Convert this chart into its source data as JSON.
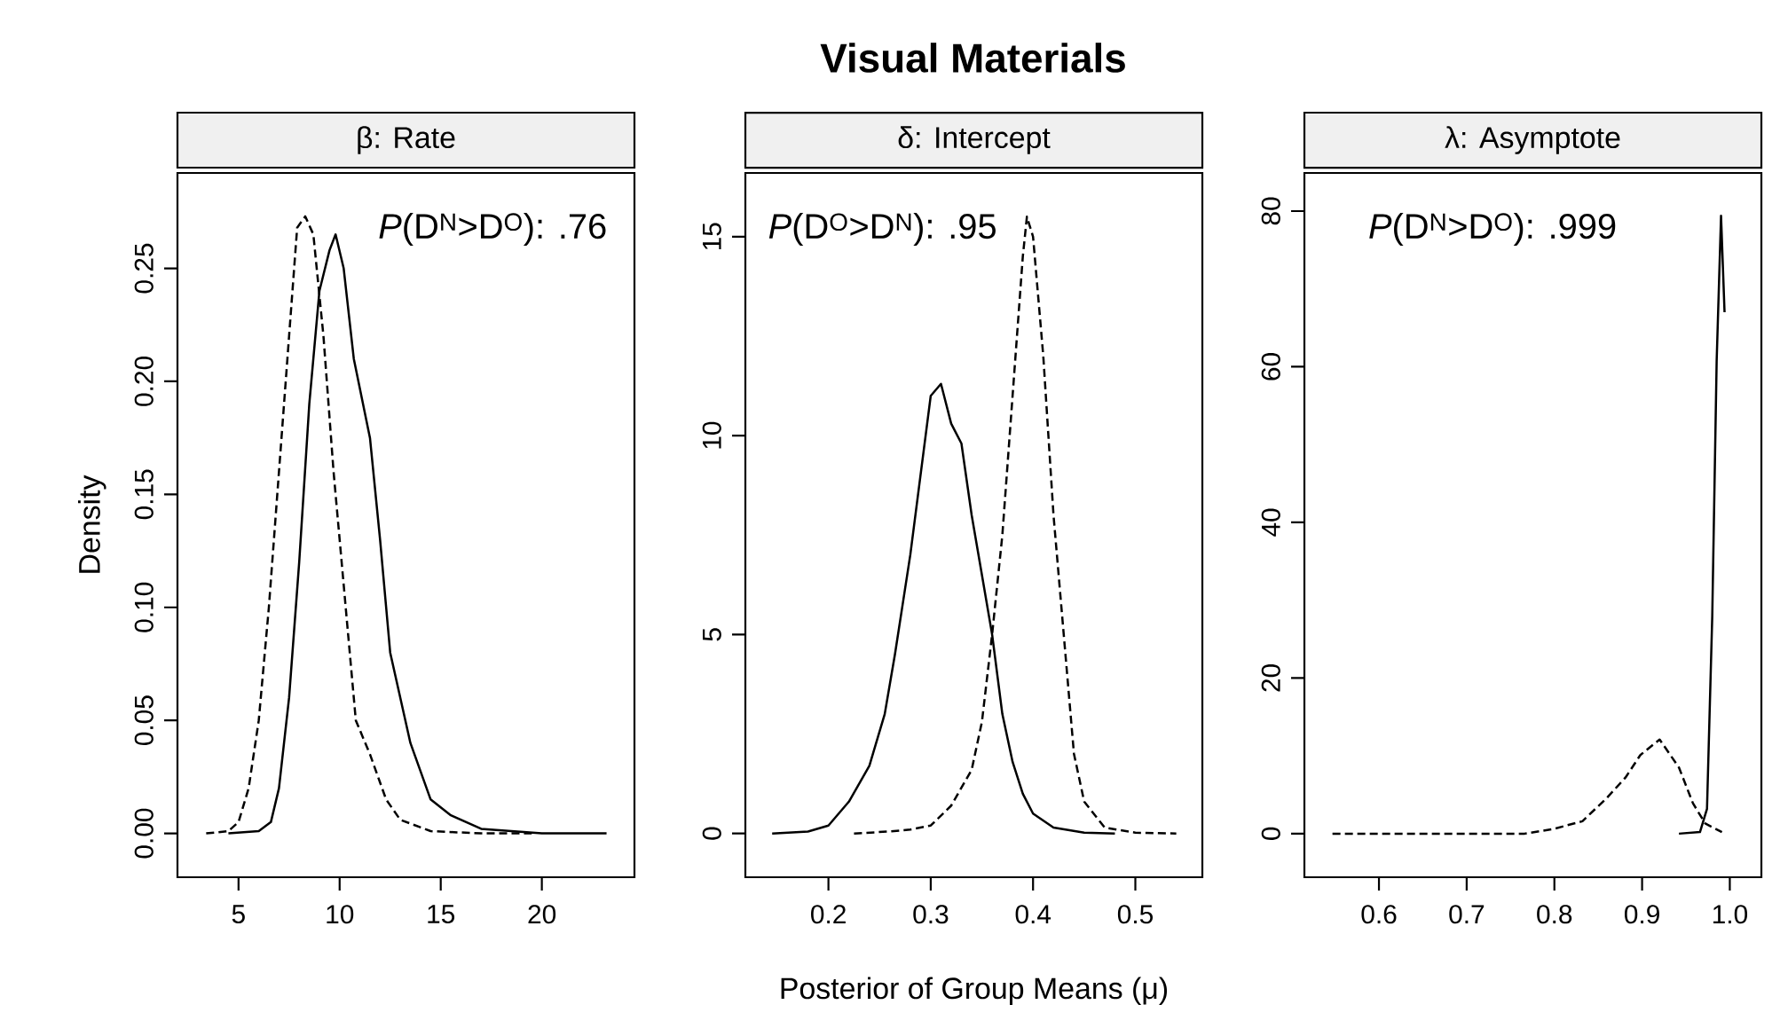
{
  "chart_data": [
    {
      "type": "line",
      "title": "β: Rate",
      "ylabel": "Density",
      "xlim": [
        1.98,
        24.58
      ],
      "ylim": [
        -0.0194,
        0.2922
      ],
      "xticks": [
        5,
        10,
        15,
        20
      ],
      "yticks": [
        {
          "value": 0,
          "label": "0.00"
        },
        {
          "value": 0.05,
          "label": "0.05"
        },
        {
          "value": 0.1,
          "label": "0.10"
        },
        {
          "value": 0.15,
          "label": "0.15"
        },
        {
          "value": 0.2,
          "label": "0.20"
        },
        {
          "value": 0.25,
          "label": "0.25"
        }
      ],
      "annotations": [
        "*P*(D$^{N}$>D$^{O}$): .76"
      ],
      "series": [
        {
          "color": "#000000",
          "line_style": "solid",
          "x": [
            4.5,
            6,
            6.6,
            7,
            7.5,
            8,
            8.5,
            9,
            9.5,
            9.8,
            10.2,
            10.7,
            11.5,
            12,
            12.5,
            13.5,
            14.5,
            15.5,
            17,
            20,
            23.2
          ],
          "values": [
            0,
            0.001,
            0.005,
            0.02,
            0.06,
            0.12,
            0.19,
            0.24,
            0.258,
            0.265,
            0.25,
            0.21,
            0.175,
            0.13,
            0.08,
            0.04,
            0.015,
            0.008,
            0.002,
            0,
            0
          ]
        },
        {
          "color": "#000000",
          "line_style": "dashed",
          "x": [
            3.4,
            4.5,
            5,
            5.5,
            6,
            6.5,
            7,
            7.5,
            7.9,
            8.3,
            8.7,
            9.2,
            9.7,
            10.3,
            10.8,
            11.5,
            12.3,
            13,
            14.5,
            17,
            19.5
          ],
          "values": [
            0,
            0.001,
            0.005,
            0.02,
            0.05,
            0.1,
            0.16,
            0.22,
            0.268,
            0.273,
            0.265,
            0.22,
            0.16,
            0.1,
            0.05,
            0.035,
            0.015,
            0.006,
            0.001,
            0,
            0
          ]
        }
      ]
    },
    {
      "type": "line",
      "title": "δ: Intercept",
      "xlabel": "Posterior of Group Means (μ)",
      "xlim": [
        0.1188,
        0.5655
      ],
      "ylim": [
        -1.1,
        16.6
      ],
      "xticks": [
        0.2,
        0.3,
        0.4,
        0.5
      ],
      "yticks": [
        0,
        5,
        10,
        15
      ],
      "annotations": [
        "**Visual Materials**",
        "*P*(D$^{O}$>D$^{N}$): .95"
      ],
      "series": [
        {
          "color": "#000000",
          "line_style": "solid",
          "x": [
            0.145,
            0.18,
            0.2,
            0.22,
            0.24,
            0.255,
            0.265,
            0.28,
            0.29,
            0.3,
            0.31,
            0.32,
            0.33,
            0.34,
            0.35,
            0.36,
            0.37,
            0.38,
            0.39,
            0.4,
            0.42,
            0.45,
            0.48
          ],
          "values": [
            0,
            0.05,
            0.2,
            0.8,
            1.7,
            3,
            4.5,
            7,
            9,
            11,
            11.3,
            10.3,
            9.8,
            8,
            6.5,
            5,
            3,
            1.8,
            1,
            0.5,
            0.15,
            0.02,
            0
          ]
        },
        {
          "color": "#000000",
          "line_style": "dashed",
          "x": [
            0.225,
            0.26,
            0.28,
            0.3,
            0.32,
            0.34,
            0.35,
            0.36,
            0.37,
            0.38,
            0.39,
            0.394,
            0.4,
            0.41,
            0.42,
            0.43,
            0.44,
            0.45,
            0.47,
            0.5,
            0.54
          ],
          "values": [
            0,
            0.05,
            0.1,
            0.2,
            0.7,
            1.6,
            2.8,
            5,
            7.5,
            11,
            14.5,
            15.5,
            15,
            12,
            8,
            5,
            2,
            0.8,
            0.15,
            0.02,
            0
          ]
        }
      ]
    },
    {
      "type": "line",
      "title": "λ: Asymptote",
      "xlim": [
        0.515,
        1.036
      ],
      "ylim": [
        -5.6,
        84.9
      ],
      "xticks": [
        0.6,
        0.7,
        0.8,
        0.9,
        {
          "value": 1,
          "label": "1.0"
        }
      ],
      "yticks": [
        0,
        20,
        40,
        60,
        80
      ],
      "annotations": [
        "*P*(D$^{N}$>D$^{O}$): .999"
      ],
      "series": [
        {
          "color": "#000000",
          "line_style": "solid",
          "x": [
            0.942,
            0.966,
            0.974,
            0.98,
            0.985,
            0.99,
            0.994
          ],
          "values": [
            0,
            0.2,
            3.2,
            28,
            60.7,
            79.4,
            67
          ]
        },
        {
          "color": "#000000",
          "line_style": "dashed",
          "x": [
            0.547,
            0.766,
            0.799,
            0.832,
            0.859,
            0.881,
            0.898,
            0.92,
            0.942,
            0.958,
            0.972,
            0.991
          ],
          "values": [
            0,
            0,
            0.6,
            1.6,
            4.5,
            7.2,
            10.1,
            12.1,
            8.5,
            3.9,
            1.3,
            0.2
          ]
        }
      ]
    }
  ]
}
